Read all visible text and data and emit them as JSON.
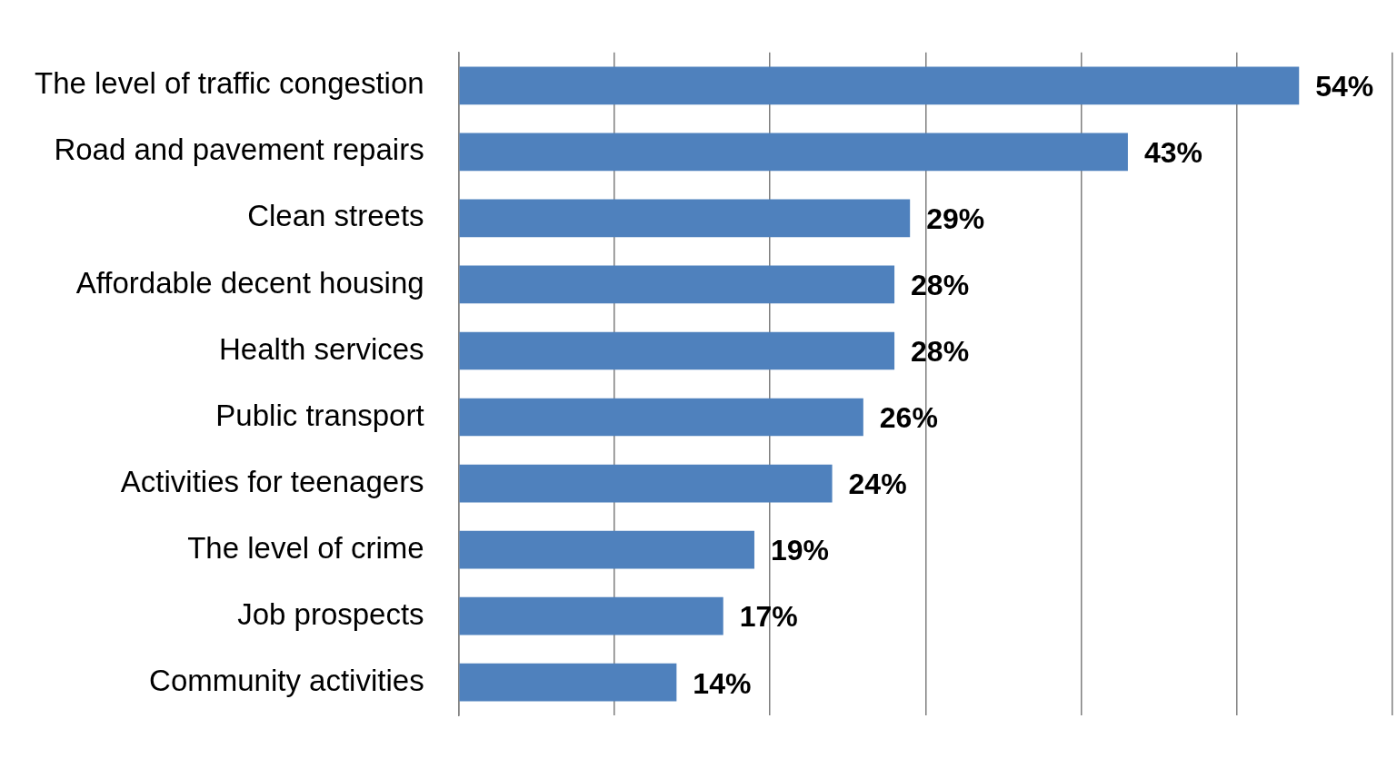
{
  "chart_data": {
    "type": "bar",
    "orientation": "horizontal",
    "categories": [
      "The level of traffic congestion",
      "Road and pavement repairs",
      "Clean streets",
      "Affordable decent housing",
      "Health services",
      "Public transport",
      "Activities for teenagers",
      "The level of crime",
      "Job prospects",
      "Community activities"
    ],
    "values": [
      54,
      43,
      29,
      28,
      28,
      26,
      24,
      19,
      17,
      14
    ],
    "value_labels": [
      "54%",
      "43%",
      "29%",
      "28%",
      "28%",
      "26%",
      "24%",
      "19%",
      "17%",
      "14%"
    ],
    "color": "#4f81bd",
    "xlim": [
      0,
      60
    ],
    "xticks": [
      {
        "value": 0,
        "label": null
      },
      {
        "value": 10,
        "label": null
      },
      {
        "value": 20,
        "label": null
      },
      {
        "value": 30,
        "label": null
      },
      {
        "value": 40,
        "label": null
      },
      {
        "value": 50,
        "label": null
      },
      {
        "value": 60,
        "label": null
      }
    ],
    "grid": "x",
    "tick_labels": "y",
    "legend": false
  }
}
